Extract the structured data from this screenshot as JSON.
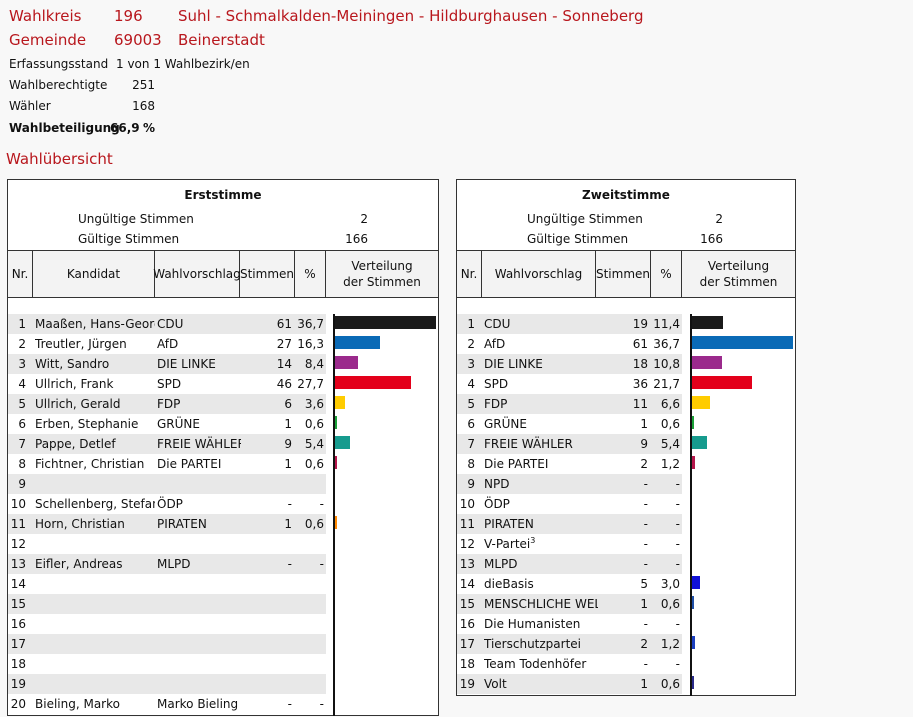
{
  "header": {
    "wahlkreis_label": "Wahlkreis",
    "wahlkreis_nr": "196",
    "wahlkreis_name": "Suhl - Schmalkalden-Meiningen - Hildburghausen - Sonneberg",
    "gemeinde_label": "Gemeinde",
    "gemeinde_nr": "69003",
    "gemeinde_name": "Beinerstadt"
  },
  "meta": {
    "erfassungsstand_label": "Erfassungsstand",
    "erfassungsstand_value": "1 von 1 Wahlbezirk/en",
    "wahlberechtigte_label": "Wahlberechtigte",
    "wahlberechtigte_value": "251",
    "waehler_label": "Wähler",
    "waehler_value": "168",
    "wahlbeteiligung_label": "Wahlbeteiligung",
    "wahlbeteiligung_value": "66,9",
    "wahlbeteiligung_unit": "%"
  },
  "section_title": "Wahlübersicht",
  "erststimme": {
    "title": "Erststimme",
    "ungueltige_label": "Ungültige Stimmen",
    "ungueltige_value": "2",
    "gueltige_label": "Gültige Stimmen",
    "gueltige_value": "166",
    "columns": {
      "nr": "Nr.",
      "kandidat": "Kandidat",
      "wahlvorschlag": "Wahlvorschlag",
      "stimmen": "Stimmen",
      "pct": "%",
      "verteilung1": "Verteilung",
      "verteilung2": "der Stimmen"
    },
    "rows": [
      {
        "nr": "1",
        "kandidat": "Maaßen, Hans-Georg",
        "wahlvorschlag": "CDU",
        "stimmen": "61",
        "pct": "36,7",
        "value": 36.7,
        "color": "#1a1a1a"
      },
      {
        "nr": "2",
        "kandidat": "Treutler, Jürgen",
        "wahlvorschlag": "AfD",
        "stimmen": "27",
        "pct": "16,3",
        "value": 16.3,
        "color": "#0a6ab6"
      },
      {
        "nr": "3",
        "kandidat": "Witt, Sandro",
        "wahlvorschlag": "DIE LINKE",
        "stimmen": "14",
        "pct": "8,4",
        "value": 8.4,
        "color": "#9b2a8c"
      },
      {
        "nr": "4",
        "kandidat": "Ullrich, Frank",
        "wahlvorschlag": "SPD",
        "stimmen": "46",
        "pct": "27,7",
        "value": 27.7,
        "color": "#e3001b"
      },
      {
        "nr": "5",
        "kandidat": "Ullrich, Gerald",
        "wahlvorschlag": "FDP",
        "stimmen": "6",
        "pct": "3,6",
        "value": 3.6,
        "color": "#ffcc00"
      },
      {
        "nr": "6",
        "kandidat": "Erben, Stephanie",
        "wahlvorschlag": "GRÜNE",
        "stimmen": "1",
        "pct": "0,6",
        "value": 0.6,
        "color": "#1aa037"
      },
      {
        "nr": "7",
        "kandidat": "Pappe, Detlef",
        "wahlvorschlag": "FREIE WÄHLER",
        "stimmen": "9",
        "pct": "5,4",
        "value": 5.4,
        "color": "#169b8e"
      },
      {
        "nr": "8",
        "kandidat": "Fichtner, Christian",
        "wahlvorschlag": "Die PARTEI",
        "stimmen": "1",
        "pct": "0,6",
        "value": 0.6,
        "color": "#b5164b"
      },
      {
        "nr": "9",
        "kandidat": "",
        "wahlvorschlag": "",
        "stimmen": "",
        "pct": "",
        "value": 0,
        "color": "#000000"
      },
      {
        "nr": "10",
        "kandidat": "Schellenberg, Stefan",
        "wahlvorschlag": "ÖDP",
        "stimmen": "-",
        "pct": "-",
        "value": 0,
        "color": "#ff6600"
      },
      {
        "nr": "11",
        "kandidat": "Horn, Christian",
        "wahlvorschlag": "PIRATEN",
        "stimmen": "1",
        "pct": "0,6",
        "value": 0.6,
        "color": "#ff8800"
      },
      {
        "nr": "12",
        "kandidat": "",
        "wahlvorschlag": "",
        "stimmen": "",
        "pct": "",
        "value": 0,
        "color": "#000000"
      },
      {
        "nr": "13",
        "kandidat": "Eifler, Andreas",
        "wahlvorschlag": "MLPD",
        "stimmen": "-",
        "pct": "-",
        "value": 0,
        "color": "#cc0000"
      },
      {
        "nr": "14",
        "kandidat": "",
        "wahlvorschlag": "",
        "stimmen": "",
        "pct": "",
        "value": 0,
        "color": "#000000"
      },
      {
        "nr": "15",
        "kandidat": "",
        "wahlvorschlag": "",
        "stimmen": "",
        "pct": "",
        "value": 0,
        "color": "#000000"
      },
      {
        "nr": "16",
        "kandidat": "",
        "wahlvorschlag": "",
        "stimmen": "",
        "pct": "",
        "value": 0,
        "color": "#000000"
      },
      {
        "nr": "17",
        "kandidat": "",
        "wahlvorschlag": "",
        "stimmen": "",
        "pct": "",
        "value": 0,
        "color": "#000000"
      },
      {
        "nr": "18",
        "kandidat": "",
        "wahlvorschlag": "",
        "stimmen": "",
        "pct": "",
        "value": 0,
        "color": "#000000"
      },
      {
        "nr": "19",
        "kandidat": "",
        "wahlvorschlag": "",
        "stimmen": "",
        "pct": "",
        "value": 0,
        "color": "#000000"
      },
      {
        "nr": "20",
        "kandidat": "Bieling, Marko",
        "wahlvorschlag": "Marko Bieling",
        "stimmen": "-",
        "pct": "-",
        "value": 0,
        "color": "#777777"
      }
    ]
  },
  "zweitstimme": {
    "title": "Zweitstimme",
    "ungueltige_label": "Ungültige Stimmen",
    "ungueltige_value": "2",
    "gueltige_label": "Gültige Stimmen",
    "gueltige_value": "166",
    "columns": {
      "nr": "Nr.",
      "wahlvorschlag": "Wahlvorschlag",
      "stimmen": "Stimmen",
      "pct": "%",
      "verteilung1": "Verteilung",
      "verteilung2": "der Stimmen"
    },
    "rows": [
      {
        "nr": "1",
        "wahlvorschlag": "CDU",
        "sup": "",
        "stimmen": "19",
        "pct": "11,4",
        "value": 11.4,
        "color": "#1a1a1a"
      },
      {
        "nr": "2",
        "wahlvorschlag": "AfD",
        "sup": "",
        "stimmen": "61",
        "pct": "36,7",
        "value": 36.7,
        "color": "#0a6ab6"
      },
      {
        "nr": "3",
        "wahlvorschlag": "DIE LINKE",
        "sup": "",
        "stimmen": "18",
        "pct": "10,8",
        "value": 10.8,
        "color": "#9b2a8c"
      },
      {
        "nr": "4",
        "wahlvorschlag": "SPD",
        "sup": "",
        "stimmen": "36",
        "pct": "21,7",
        "value": 21.7,
        "color": "#e3001b"
      },
      {
        "nr": "5",
        "wahlvorschlag": "FDP",
        "sup": "",
        "stimmen": "11",
        "pct": "6,6",
        "value": 6.6,
        "color": "#ffcc00"
      },
      {
        "nr": "6",
        "wahlvorschlag": "GRÜNE",
        "sup": "",
        "stimmen": "1",
        "pct": "0,6",
        "value": 0.6,
        "color": "#1aa037"
      },
      {
        "nr": "7",
        "wahlvorschlag": "FREIE WÄHLER",
        "sup": "",
        "stimmen": "9",
        "pct": "5,4",
        "value": 5.4,
        "color": "#169b8e"
      },
      {
        "nr": "8",
        "wahlvorschlag": "Die PARTEI",
        "sup": "",
        "stimmen": "2",
        "pct": "1,2",
        "value": 1.2,
        "color": "#b5164b"
      },
      {
        "nr": "9",
        "wahlvorschlag": "NPD",
        "sup": "",
        "stimmen": "-",
        "pct": "-",
        "value": 0,
        "color": "#8b4513"
      },
      {
        "nr": "10",
        "wahlvorschlag": "ÖDP",
        "sup": "",
        "stimmen": "-",
        "pct": "-",
        "value": 0,
        "color": "#ff6600"
      },
      {
        "nr": "11",
        "wahlvorschlag": "PIRATEN",
        "sup": "",
        "stimmen": "-",
        "pct": "-",
        "value": 0,
        "color": "#ff8800"
      },
      {
        "nr": "12",
        "wahlvorschlag": "V-Partei",
        "sup": "3",
        "stimmen": "-",
        "pct": "-",
        "value": 0,
        "color": "#66aa33"
      },
      {
        "nr": "13",
        "wahlvorschlag": "MLPD",
        "sup": "",
        "stimmen": "-",
        "pct": "-",
        "value": 0,
        "color": "#cc0000"
      },
      {
        "nr": "14",
        "wahlvorschlag": "dieBasis",
        "sup": "",
        "stimmen": "5",
        "pct": "3,0",
        "value": 3.0,
        "color": "#1010d8"
      },
      {
        "nr": "15",
        "wahlvorschlag": "MENSCHLICHE WELT",
        "sup": "",
        "stimmen": "1",
        "pct": "0,6",
        "value": 0.6,
        "color": "#1f4fa8"
      },
      {
        "nr": "16",
        "wahlvorschlag": "Die Humanisten",
        "sup": "",
        "stimmen": "-",
        "pct": "-",
        "value": 0,
        "color": "#333399"
      },
      {
        "nr": "17",
        "wahlvorschlag": "Tierschutzpartei",
        "sup": "",
        "stimmen": "2",
        "pct": "1,2",
        "value": 1.2,
        "color": "#1b3fc0"
      },
      {
        "nr": "18",
        "wahlvorschlag": "Team Todenhöfer",
        "sup": "",
        "stimmen": "-",
        "pct": "-",
        "value": 0,
        "color": "#2233aa"
      },
      {
        "nr": "19",
        "wahlvorschlag": "Volt",
        "sup": "",
        "stimmen": "1",
        "pct": "0,6",
        "value": 0.6,
        "color": "#2a2a8a"
      }
    ]
  }
}
